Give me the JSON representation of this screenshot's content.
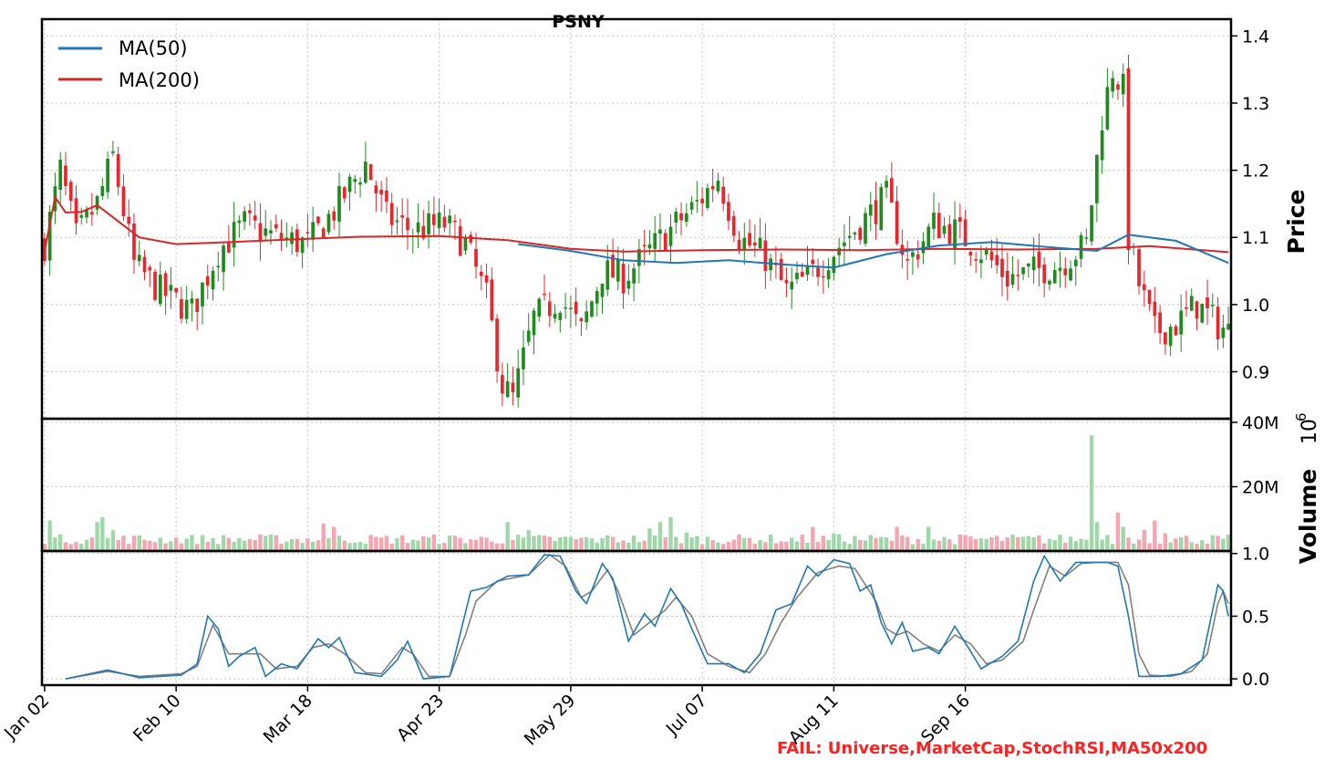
{
  "chart_data": {
    "type": "candlestick",
    "title": "PSNY",
    "x_ticks": [
      "Jan 02",
      "Feb 10",
      "Mar 18",
      "Apr 23",
      "May 29",
      "Jul 07",
      "Aug 11",
      "Sep 16"
    ],
    "price_panel": {
      "ylabel": "Price",
      "yticks": [
        "0.9",
        "1.0",
        "1.1",
        "1.2",
        "1.3",
        "1.4"
      ],
      "ylim": [
        0.83,
        1.425
      ],
      "legend": [
        "MA(50)",
        "MA(200)"
      ],
      "legend_placement": "top-left",
      "colors": {
        "up": "#1f8b1f",
        "down": "#e8262b",
        "ma50": "#1f77b4",
        "ma200": "#d62728"
      },
      "anchors": [
        {
          "x": 0,
          "p": 1.09
        },
        {
          "x": 3,
          "p": 1.2
        },
        {
          "x": 6,
          "p": 1.1
        },
        {
          "x": 10,
          "p": 1.15
        },
        {
          "x": 13,
          "p": 1.22
        },
        {
          "x": 17,
          "p": 1.06
        },
        {
          "x": 22,
          "p": 1.02
        },
        {
          "x": 28,
          "p": 0.99
        },
        {
          "x": 33,
          "p": 1.08
        },
        {
          "x": 38,
          "p": 1.12
        },
        {
          "x": 44,
          "p": 1.1
        },
        {
          "x": 50,
          "p": 1.09
        },
        {
          "x": 55,
          "p": 1.14
        },
        {
          "x": 61,
          "p": 1.21
        },
        {
          "x": 65,
          "p": 1.13
        },
        {
          "x": 70,
          "p": 1.11
        },
        {
          "x": 76,
          "p": 1.12
        },
        {
          "x": 80,
          "p": 1.09
        },
        {
          "x": 84,
          "p": 1.01
        },
        {
          "x": 87,
          "p": 0.88
        },
        {
          "x": 89,
          "p": 0.86
        },
        {
          "x": 93,
          "p": 0.98
        },
        {
          "x": 98,
          "p": 1.01
        },
        {
          "x": 102,
          "p": 0.96
        },
        {
          "x": 106,
          "p": 1.05
        },
        {
          "x": 110,
          "p": 1.04
        },
        {
          "x": 115,
          "p": 1.08
        },
        {
          "x": 120,
          "p": 1.12
        },
        {
          "x": 124,
          "p": 1.15
        },
        {
          "x": 128,
          "p": 1.19
        },
        {
          "x": 132,
          "p": 1.1
        },
        {
          "x": 137,
          "p": 1.07
        },
        {
          "x": 141,
          "p": 1.02
        },
        {
          "x": 145,
          "p": 1.04
        },
        {
          "x": 150,
          "p": 1.08
        },
        {
          "x": 155,
          "p": 1.12
        },
        {
          "x": 160,
          "p": 1.16
        },
        {
          "x": 164,
          "p": 1.06
        },
        {
          "x": 169,
          "p": 1.12
        },
        {
          "x": 173,
          "p": 1.11
        },
        {
          "x": 178,
          "p": 1.08
        },
        {
          "x": 183,
          "p": 1.04
        },
        {
          "x": 188,
          "p": 1.05
        },
        {
          "x": 193,
          "p": 1.06
        },
        {
          "x": 198,
          "p": 1.09
        },
        {
          "x": 201,
          "p": 1.28
        },
        {
          "x": 203,
          "p": 1.35
        },
        {
          "x": 205,
          "p": 1.32
        },
        {
          "x": 206,
          "p": 1.1
        },
        {
          "x": 208,
          "p": 1.03
        },
        {
          "x": 211,
          "p": 0.96
        },
        {
          "x": 215,
          "p": 0.97
        },
        {
          "x": 219,
          "p": 1.0
        },
        {
          "x": 223,
          "p": 0.97
        },
        {
          "x": 225,
          "p": 0.96
        }
      ],
      "ma50": [
        {
          "x": 90,
          "p": 1.09
        },
        {
          "x": 100,
          "p": 1.08
        },
        {
          "x": 110,
          "p": 1.066
        },
        {
          "x": 120,
          "p": 1.062
        },
        {
          "x": 130,
          "p": 1.066
        },
        {
          "x": 140,
          "p": 1.06
        },
        {
          "x": 150,
          "p": 1.055
        },
        {
          "x": 160,
          "p": 1.075
        },
        {
          "x": 170,
          "p": 1.088
        },
        {
          "x": 180,
          "p": 1.093
        },
        {
          "x": 190,
          "p": 1.086
        },
        {
          "x": 200,
          "p": 1.08
        },
        {
          "x": 206,
          "p": 1.104
        },
        {
          "x": 215,
          "p": 1.095
        },
        {
          "x": 225,
          "p": 1.062
        }
      ],
      "ma200": [
        {
          "x": 0,
          "p": 1.08
        },
        {
          "x": 2,
          "p": 1.16
        },
        {
          "x": 4,
          "p": 1.137
        },
        {
          "x": 7,
          "p": 1.138
        },
        {
          "x": 10,
          "p": 1.148
        },
        {
          "x": 13,
          "p": 1.13
        },
        {
          "x": 18,
          "p": 1.1
        },
        {
          "x": 25,
          "p": 1.09
        },
        {
          "x": 35,
          "p": 1.093
        },
        {
          "x": 50,
          "p": 1.098
        },
        {
          "x": 60,
          "p": 1.101
        },
        {
          "x": 75,
          "p": 1.102
        },
        {
          "x": 88,
          "p": 1.096
        },
        {
          "x": 100,
          "p": 1.083
        },
        {
          "x": 110,
          "p": 1.079
        },
        {
          "x": 125,
          "p": 1.081
        },
        {
          "x": 140,
          "p": 1.082
        },
        {
          "x": 155,
          "p": 1.081
        },
        {
          "x": 170,
          "p": 1.083
        },
        {
          "x": 185,
          "p": 1.082
        },
        {
          "x": 200,
          "p": 1.083
        },
        {
          "x": 210,
          "p": 1.087
        },
        {
          "x": 225,
          "p": 1.078
        }
      ]
    },
    "volume_panel": {
      "ylabel": "Volume",
      "exponent_label": "10",
      "exponent_power": "6",
      "yticks": [
        "20M",
        "40M"
      ],
      "ylim": [
        0,
        40
      ],
      "baseline_millions": 3.5,
      "spikes_millions": [
        {
          "x": 1,
          "v": 9.5
        },
        {
          "x": 10,
          "v": 9
        },
        {
          "x": 11,
          "v": 10.5
        },
        {
          "x": 13,
          "v": 6.5
        },
        {
          "x": 53,
          "v": 8.5
        },
        {
          "x": 55,
          "v": 7.5
        },
        {
          "x": 88,
          "v": 9
        },
        {
          "x": 92,
          "v": 6.5
        },
        {
          "x": 106,
          "v": 4
        },
        {
          "x": 115,
          "v": 7
        },
        {
          "x": 117,
          "v": 9
        },
        {
          "x": 119,
          "v": 10.5
        },
        {
          "x": 122,
          "v": 5.8
        },
        {
          "x": 140,
          "v": 3
        },
        {
          "x": 146,
          "v": 7.5
        },
        {
          "x": 150,
          "v": 5.5
        },
        {
          "x": 162,
          "v": 7.5
        },
        {
          "x": 168,
          "v": 7.5
        },
        {
          "x": 198,
          "v": 3.5
        },
        {
          "x": 199,
          "v": 36
        },
        {
          "x": 200,
          "v": 9
        },
        {
          "x": 202,
          "v": 5
        },
        {
          "x": 204,
          "v": 12
        },
        {
          "x": 205,
          "v": 7.5
        },
        {
          "x": 209,
          "v": 6.5
        },
        {
          "x": 211,
          "v": 9.5
        },
        {
          "x": 213,
          "v": 5.5
        }
      ]
    },
    "stochrsi_panel": {
      "yticks": [
        "0.0",
        "0.5",
        "1.0"
      ],
      "ylim": [
        -0.05,
        1.02
      ],
      "colors": {
        "k": "#1f77b4",
        "d": "#7f7f7f"
      },
      "k_anchors": [
        {
          "x": 4,
          "v": 0.0
        },
        {
          "x": 12,
          "v": 0.07
        },
        {
          "x": 18,
          "v": 0.01
        },
        {
          "x": 26,
          "v": 0.03
        },
        {
          "x": 29,
          "v": 0.12
        },
        {
          "x": 31,
          "v": 0.5
        },
        {
          "x": 33,
          "v": 0.4
        },
        {
          "x": 35,
          "v": 0.1
        },
        {
          "x": 37,
          "v": 0.18
        },
        {
          "x": 40,
          "v": 0.25
        },
        {
          "x": 42,
          "v": 0.02
        },
        {
          "x": 45,
          "v": 0.12
        },
        {
          "x": 48,
          "v": 0.08
        },
        {
          "x": 52,
          "v": 0.32
        },
        {
          "x": 54,
          "v": 0.25
        },
        {
          "x": 56,
          "v": 0.33
        },
        {
          "x": 59,
          "v": 0.05
        },
        {
          "x": 64,
          "v": 0.02
        },
        {
          "x": 67,
          "v": 0.15
        },
        {
          "x": 69,
          "v": 0.3
        },
        {
          "x": 72,
          "v": 0.0
        },
        {
          "x": 77,
          "v": 0.02
        },
        {
          "x": 81,
          "v": 0.7
        },
        {
          "x": 84,
          "v": 0.73
        },
        {
          "x": 88,
          "v": 0.82
        },
        {
          "x": 92,
          "v": 0.83
        },
        {
          "x": 95,
          "v": 0.99
        },
        {
          "x": 98,
          "v": 0.98
        },
        {
          "x": 101,
          "v": 0.7
        },
        {
          "x": 103,
          "v": 0.6
        },
        {
          "x": 106,
          "v": 0.92
        },
        {
          "x": 108,
          "v": 0.8
        },
        {
          "x": 111,
          "v": 0.3
        },
        {
          "x": 114,
          "v": 0.52
        },
        {
          "x": 116,
          "v": 0.42
        },
        {
          "x": 119,
          "v": 0.72
        },
        {
          "x": 121,
          "v": 0.6
        },
        {
          "x": 123,
          "v": 0.4
        },
        {
          "x": 126,
          "v": 0.12
        },
        {
          "x": 130,
          "v": 0.12
        },
        {
          "x": 133,
          "v": 0.05
        },
        {
          "x": 136,
          "v": 0.2
        },
        {
          "x": 139,
          "v": 0.55
        },
        {
          "x": 142,
          "v": 0.6
        },
        {
          "x": 145,
          "v": 0.9
        },
        {
          "x": 147,
          "v": 0.82
        },
        {
          "x": 150,
          "v": 0.95
        },
        {
          "x": 153,
          "v": 0.92
        },
        {
          "x": 155,
          "v": 0.7
        },
        {
          "x": 157,
          "v": 0.75
        },
        {
          "x": 159,
          "v": 0.45
        },
        {
          "x": 161,
          "v": 0.28
        },
        {
          "x": 163,
          "v": 0.45
        },
        {
          "x": 165,
          "v": 0.22
        },
        {
          "x": 168,
          "v": 0.25
        },
        {
          "x": 170,
          "v": 0.2
        },
        {
          "x": 173,
          "v": 0.42
        },
        {
          "x": 176,
          "v": 0.22
        },
        {
          "x": 178,
          "v": 0.08
        },
        {
          "x": 182,
          "v": 0.18
        },
        {
          "x": 185,
          "v": 0.3
        },
        {
          "x": 188,
          "v": 0.78
        },
        {
          "x": 190,
          "v": 0.98
        },
        {
          "x": 193,
          "v": 0.78
        },
        {
          "x": 196,
          "v": 0.93
        },
        {
          "x": 199,
          "v": 0.93
        },
        {
          "x": 202,
          "v": 0.93
        },
        {
          "x": 204,
          "v": 0.9
        },
        {
          "x": 206,
          "v": 0.5
        },
        {
          "x": 208,
          "v": 0.02
        },
        {
          "x": 212,
          "v": 0.02
        },
        {
          "x": 216,
          "v": 0.04
        },
        {
          "x": 220,
          "v": 0.15
        },
        {
          "x": 223,
          "v": 0.75
        },
        {
          "x": 224,
          "v": 0.7
        },
        {
          "x": 225,
          "v": 0.5
        }
      ],
      "d_anchors": [
        {
          "x": 4,
          "v": 0.0
        },
        {
          "x": 12,
          "v": 0.06
        },
        {
          "x": 18,
          "v": 0.02
        },
        {
          "x": 26,
          "v": 0.04
        },
        {
          "x": 29,
          "v": 0.1
        },
        {
          "x": 32,
          "v": 0.43
        },
        {
          "x": 35,
          "v": 0.2
        },
        {
          "x": 38,
          "v": 0.2
        },
        {
          "x": 41,
          "v": 0.2
        },
        {
          "x": 44,
          "v": 0.08
        },
        {
          "x": 48,
          "v": 0.1
        },
        {
          "x": 51,
          "v": 0.25
        },
        {
          "x": 54,
          "v": 0.28
        },
        {
          "x": 57,
          "v": 0.2
        },
        {
          "x": 61,
          "v": 0.05
        },
        {
          "x": 64,
          "v": 0.04
        },
        {
          "x": 68,
          "v": 0.25
        },
        {
          "x": 70,
          "v": 0.2
        },
        {
          "x": 73,
          "v": 0.02
        },
        {
          "x": 77,
          "v": 0.02
        },
        {
          "x": 80,
          "v": 0.35
        },
        {
          "x": 82,
          "v": 0.62
        },
        {
          "x": 86,
          "v": 0.78
        },
        {
          "x": 92,
          "v": 0.83
        },
        {
          "x": 96,
          "v": 0.99
        },
        {
          "x": 99,
          "v": 0.9
        },
        {
          "x": 102,
          "v": 0.65
        },
        {
          "x": 104,
          "v": 0.7
        },
        {
          "x": 107,
          "v": 0.87
        },
        {
          "x": 109,
          "v": 0.7
        },
        {
          "x": 112,
          "v": 0.35
        },
        {
          "x": 115,
          "v": 0.45
        },
        {
          "x": 118,
          "v": 0.55
        },
        {
          "x": 120,
          "v": 0.65
        },
        {
          "x": 123,
          "v": 0.5
        },
        {
          "x": 126,
          "v": 0.2
        },
        {
          "x": 130,
          "v": 0.1
        },
        {
          "x": 134,
          "v": 0.05
        },
        {
          "x": 137,
          "v": 0.2
        },
        {
          "x": 140,
          "v": 0.45
        },
        {
          "x": 143,
          "v": 0.65
        },
        {
          "x": 147,
          "v": 0.85
        },
        {
          "x": 151,
          "v": 0.9
        },
        {
          "x": 154,
          "v": 0.88
        },
        {
          "x": 156,
          "v": 0.75
        },
        {
          "x": 158,
          "v": 0.62
        },
        {
          "x": 160,
          "v": 0.4
        },
        {
          "x": 162,
          "v": 0.35
        },
        {
          "x": 164,
          "v": 0.38
        },
        {
          "x": 167,
          "v": 0.28
        },
        {
          "x": 170,
          "v": 0.22
        },
        {
          "x": 173,
          "v": 0.35
        },
        {
          "x": 176,
          "v": 0.28
        },
        {
          "x": 179,
          "v": 0.12
        },
        {
          "x": 182,
          "v": 0.15
        },
        {
          "x": 186,
          "v": 0.3
        },
        {
          "x": 188,
          "v": 0.55
        },
        {
          "x": 191,
          "v": 0.9
        },
        {
          "x": 194,
          "v": 0.82
        },
        {
          "x": 197,
          "v": 0.92
        },
        {
          "x": 200,
          "v": 0.93
        },
        {
          "x": 204,
          "v": 0.93
        },
        {
          "x": 206,
          "v": 0.75
        },
        {
          "x": 208,
          "v": 0.2
        },
        {
          "x": 210,
          "v": 0.03
        },
        {
          "x": 214,
          "v": 0.02
        },
        {
          "x": 218,
          "v": 0.06
        },
        {
          "x": 221,
          "v": 0.2
        },
        {
          "x": 223,
          "v": 0.6
        },
        {
          "x": 224,
          "v": 0.7
        },
        {
          "x": 225,
          "v": 0.6
        }
      ]
    },
    "fail_text": "FAIL: Universe,MarketCap,StochRSI,MA50x200",
    "fail_color": "#ff2020"
  }
}
